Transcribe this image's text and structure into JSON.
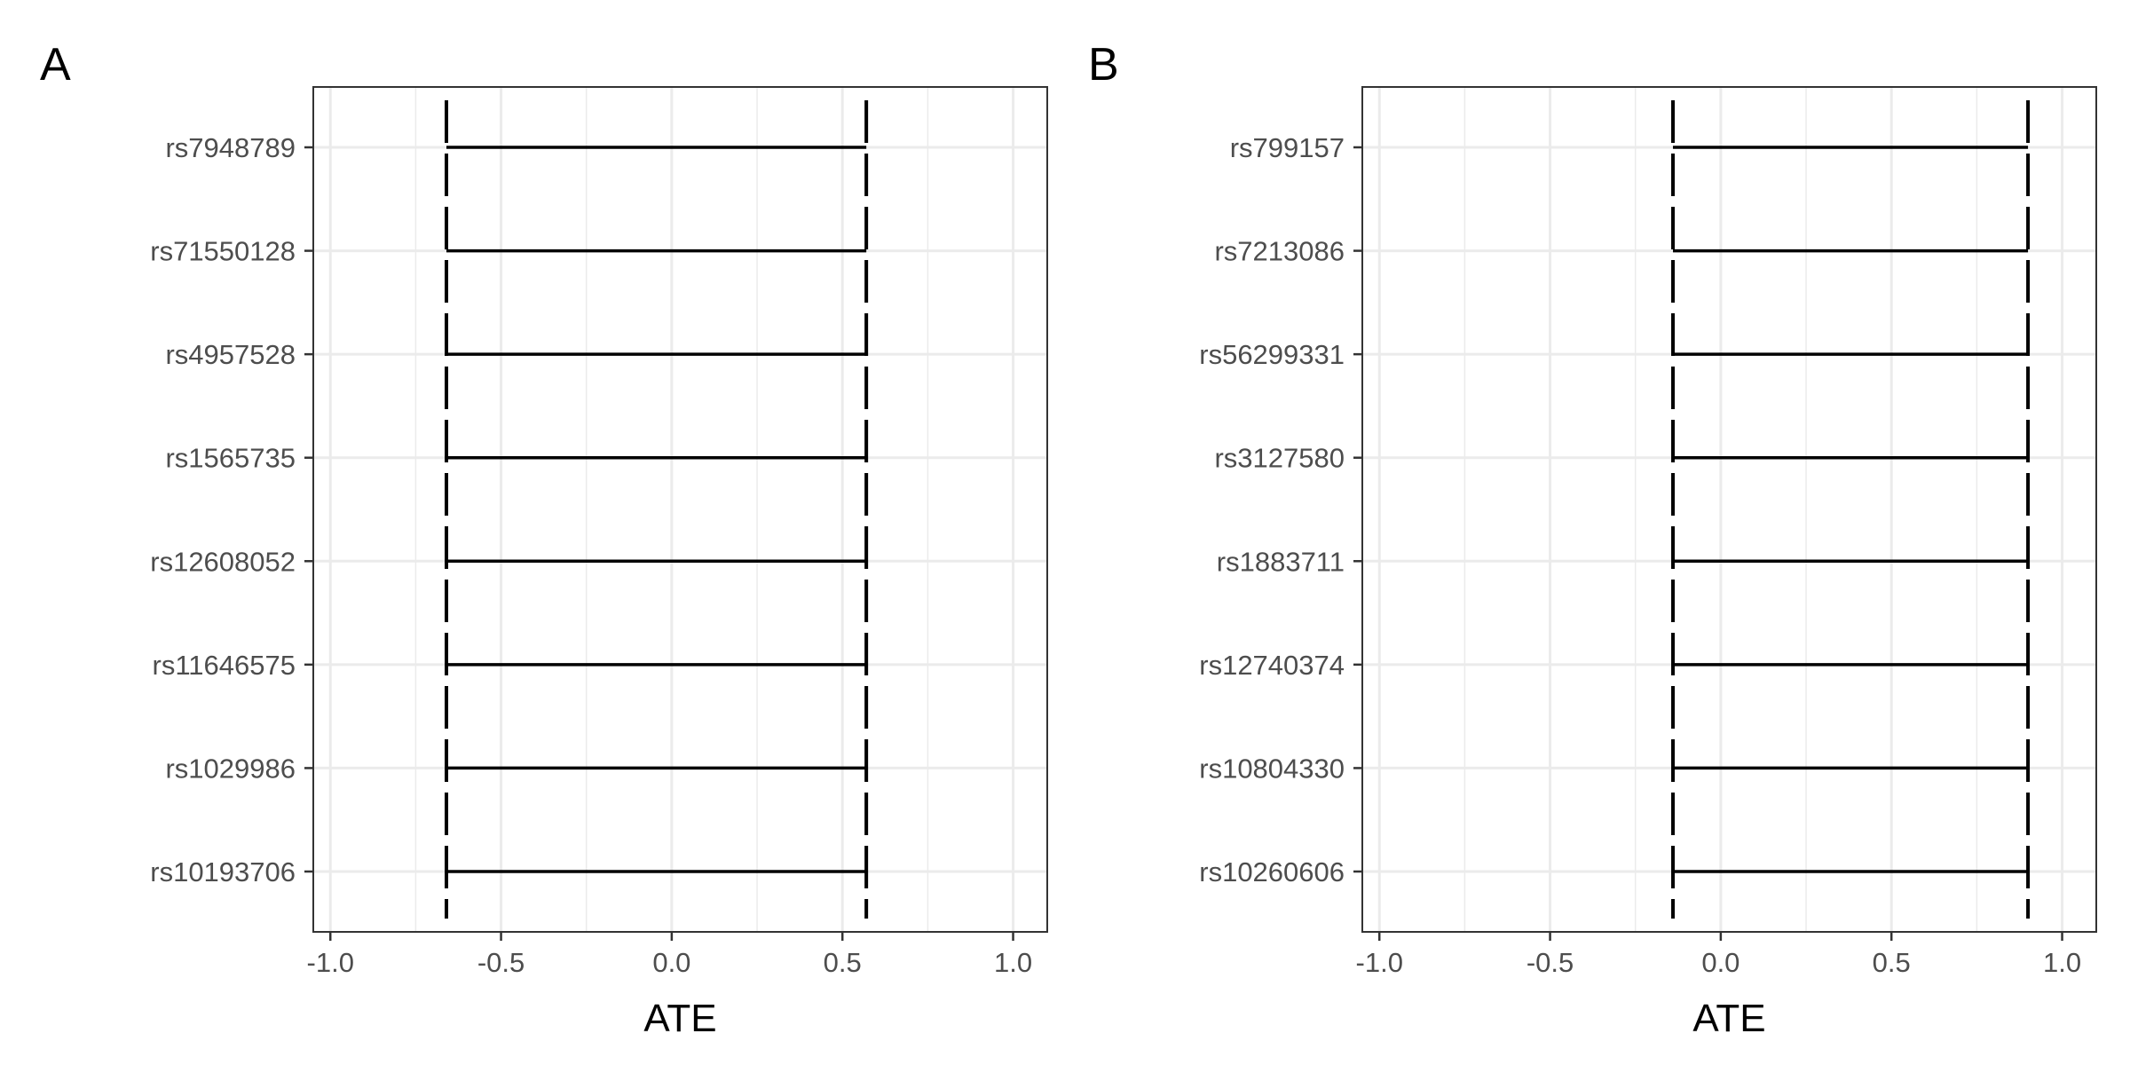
{
  "chart_data": [
    {
      "type": "interval",
      "panel_tag": "A",
      "xlabel": "ATE",
      "xlim": [
        -1.05,
        1.1
      ],
      "x_ticks": [
        -1.0,
        -0.5,
        0.0,
        0.5,
        1.0
      ],
      "x_tick_labels": [
        "-1.0",
        "-0.5",
        "0.0",
        "0.5",
        "1.0"
      ],
      "grid": true,
      "categories": [
        "rs7948789",
        "rs71550128",
        "rs4957528",
        "rs1565735",
        "rs12608052",
        "rs11646575",
        "rs1029986",
        "rs10193706"
      ],
      "intervals": [
        {
          "label": "rs7948789",
          "lower": -0.66,
          "upper": 0.57
        },
        {
          "label": "rs71550128",
          "lower": -0.66,
          "upper": 0.57
        },
        {
          "label": "rs4957528",
          "lower": -0.66,
          "upper": 0.57
        },
        {
          "label": "rs1565735",
          "lower": -0.66,
          "upper": 0.57
        },
        {
          "label": "rs12608052",
          "lower": -0.66,
          "upper": 0.57
        },
        {
          "label": "rs11646575",
          "lower": -0.66,
          "upper": 0.57
        },
        {
          "label": "rs1029986",
          "lower": -0.66,
          "upper": 0.57
        },
        {
          "label": "rs10193706",
          "lower": -0.66,
          "upper": 0.57
        }
      ]
    },
    {
      "type": "interval",
      "panel_tag": "B",
      "xlabel": "ATE",
      "xlim": [
        -1.05,
        1.1
      ],
      "x_ticks": [
        -1.0,
        -0.5,
        0.0,
        0.5,
        1.0
      ],
      "x_tick_labels": [
        "-1.0",
        "-0.5",
        "0.0",
        "0.5",
        "1.0"
      ],
      "grid": true,
      "categories": [
        "rs799157",
        "rs7213086",
        "rs56299331",
        "rs3127580",
        "rs1883711",
        "rs12740374",
        "rs10804330",
        "rs10260606"
      ],
      "intervals": [
        {
          "label": "rs799157",
          "lower": -0.14,
          "upper": 0.9
        },
        {
          "label": "rs7213086",
          "lower": -0.14,
          "upper": 0.9
        },
        {
          "label": "rs56299331",
          "lower": -0.14,
          "upper": 0.9
        },
        {
          "label": "rs3127580",
          "lower": -0.14,
          "upper": 0.9
        },
        {
          "label": "rs1883711",
          "lower": -0.14,
          "upper": 0.9
        },
        {
          "label": "rs12740374",
          "lower": -0.14,
          "upper": 0.9
        },
        {
          "label": "rs10804330",
          "lower": -0.14,
          "upper": 0.9
        },
        {
          "label": "rs10260606",
          "lower": -0.14,
          "upper": 0.9
        }
      ]
    }
  ]
}
